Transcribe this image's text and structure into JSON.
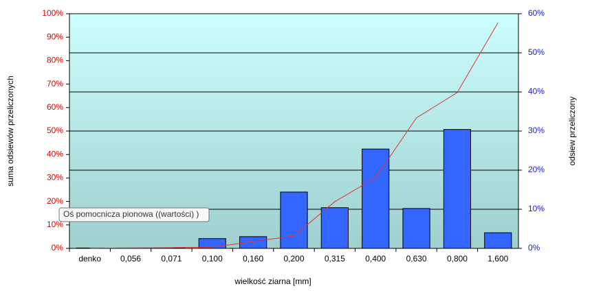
{
  "chart_data": {
    "type": "bar",
    "x_label": "wielkość ziarna [mm]",
    "y_label": "suma odsiewów przeliczonych",
    "y2_label": "odsiew przeliczony",
    "tooltip": "Oś pomocnicza  pionowa  ((wartości) )",
    "categories": [
      "denko",
      "0,056",
      "0,071",
      "0,100",
      "0,160",
      "0,200",
      "0,315",
      "0,400",
      "0,630",
      "0,800",
      "1,600"
    ],
    "series": [
      {
        "type": "bar",
        "axis": "y2",
        "color": "#3366ff",
        "values": [
          0.1,
          0.1,
          0.1,
          2.5,
          3.0,
          14.4,
          10.4,
          25.4,
          10.2,
          30.4,
          4.0
        ]
      },
      {
        "type": "line",
        "color": "#e03030",
        "values": [
          0.1,
          0.2,
          0.3,
          0.5,
          2.9,
          5.3,
          19.9,
          30.1,
          55.6,
          66.4,
          96.2
        ]
      }
    ],
    "ylim": [
      0,
      100
    ],
    "yticks": [
      {
        "value": 0,
        "label": "0%"
      },
      {
        "value": 10,
        "label": "10%"
      },
      {
        "value": 20,
        "label": "20%"
      },
      {
        "value": 30,
        "label": "30%"
      },
      {
        "value": 40,
        "label": "40%"
      },
      {
        "value": 50,
        "label": "50%"
      },
      {
        "value": 60,
        "label": "60%"
      },
      {
        "value": 70,
        "label": "70%"
      },
      {
        "value": 80,
        "label": "80%"
      },
      {
        "value": 90,
        "label": "90%"
      },
      {
        "value": 100,
        "label": "100%"
      }
    ],
    "y2lim": [
      0,
      60
    ],
    "y2ticks": [
      {
        "value": 0,
        "label": "0%"
      },
      {
        "value": 10,
        "label": "10%"
      },
      {
        "value": 20,
        "label": "20%"
      },
      {
        "value": 30,
        "label": "30%"
      },
      {
        "value": 40,
        "label": "40%"
      },
      {
        "value": 50,
        "label": "50%"
      },
      {
        "value": 60,
        "label": "60%"
      }
    ],
    "grid": "y2"
  }
}
